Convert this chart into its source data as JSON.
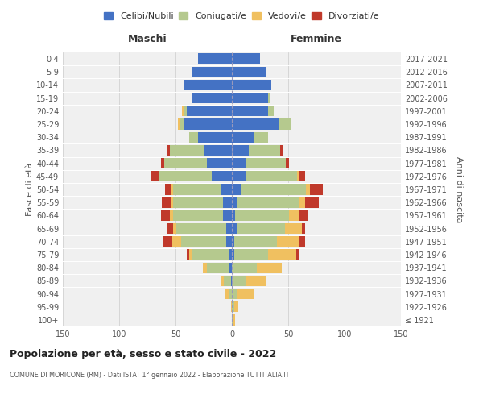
{
  "age_groups": [
    "100+",
    "95-99",
    "90-94",
    "85-89",
    "80-84",
    "75-79",
    "70-74",
    "65-69",
    "60-64",
    "55-59",
    "50-54",
    "45-49",
    "40-44",
    "35-39",
    "30-34",
    "25-29",
    "20-24",
    "15-19",
    "10-14",
    "5-9",
    "0-4"
  ],
  "birth_years": [
    "≤ 1921",
    "1922-1926",
    "1927-1931",
    "1932-1936",
    "1937-1941",
    "1942-1946",
    "1947-1951",
    "1952-1956",
    "1957-1961",
    "1962-1966",
    "1967-1971",
    "1972-1976",
    "1977-1981",
    "1982-1986",
    "1987-1991",
    "1992-1996",
    "1997-2001",
    "2002-2006",
    "2007-2011",
    "2012-2016",
    "2017-2021"
  ],
  "maschi": {
    "celibi": [
      0,
      0,
      0,
      1,
      2,
      3,
      5,
      5,
      8,
      8,
      10,
      18,
      22,
      25,
      30,
      42,
      40,
      35,
      42,
      35,
      30
    ],
    "coniugati": [
      0,
      0,
      3,
      6,
      20,
      32,
      40,
      44,
      44,
      44,
      42,
      46,
      38,
      30,
      8,
      4,
      2,
      0,
      0,
      0,
      0
    ],
    "vedovi": [
      0,
      1,
      3,
      3,
      4,
      3,
      8,
      3,
      3,
      2,
      2,
      0,
      0,
      0,
      0,
      2,
      2,
      0,
      0,
      0,
      0
    ],
    "divorziati": [
      0,
      0,
      0,
      0,
      0,
      2,
      8,
      5,
      8,
      8,
      5,
      8,
      3,
      3,
      0,
      0,
      0,
      0,
      0,
      0,
      0
    ]
  },
  "femmine": {
    "nubili": [
      0,
      0,
      0,
      0,
      0,
      2,
      2,
      5,
      3,
      5,
      8,
      12,
      12,
      15,
      20,
      42,
      32,
      32,
      35,
      30,
      25
    ],
    "coniugate": [
      1,
      2,
      5,
      12,
      22,
      30,
      38,
      42,
      48,
      55,
      58,
      46,
      36,
      28,
      12,
      10,
      5,
      2,
      0,
      0,
      0
    ],
    "vedove": [
      2,
      4,
      14,
      18,
      22,
      25,
      20,
      15,
      8,
      5,
      3,
      2,
      0,
      0,
      0,
      0,
      0,
      0,
      0,
      0,
      0
    ],
    "divorziate": [
      0,
      0,
      1,
      0,
      0,
      3,
      5,
      3,
      8,
      12,
      12,
      5,
      3,
      3,
      0,
      0,
      0,
      0,
      0,
      0,
      0
    ]
  },
  "colors": {
    "celibi": "#4472c4",
    "coniugati": "#b5c98e",
    "vedovi": "#f0c060",
    "divorziati": "#c0392b"
  },
  "xlim": 150,
  "title": "Popolazione per età, sesso e stato civile - 2022",
  "subtitle": "COMUNE DI MORICONE (RM) - Dati ISTAT 1° gennaio 2022 - Elaborazione TUTTITALIA.IT",
  "legend_labels": [
    "Celibi/Nubili",
    "Coniugati/e",
    "Vedovi/e",
    "Divorziati/e"
  ],
  "header_left": "Maschi",
  "header_right": "Femmine",
  "ylabel_left": "Fasce di età",
  "ylabel_right": "Anni di nascita",
  "bg_color": "#f0f0f0"
}
